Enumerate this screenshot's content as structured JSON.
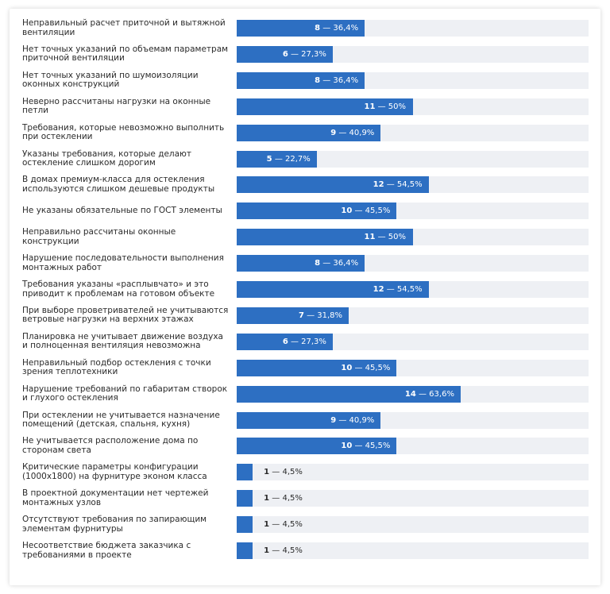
{
  "chart_data": {
    "type": "bar",
    "orientation": "horizontal",
    "categories": [
      "Неправильный расчет приточной и вытяжной вентиляции",
      "Нет точных указаний по объемам параметрам приточной вентиляции",
      "Нет точных указаний по шумоизоляции оконных конструкций",
      "Неверно рассчитаны нагрузки на оконные петли",
      "Требования, которые невозможно выполнить при остеклении",
      "Указаны требования, которые делают остекление слишком дорогим",
      "В домах премиум-класса для остекления используются слишком дешевые продукты",
      "Не указаны обязательные по ГОСТ элементы",
      "Неправильно рассчитаны оконные конструкции",
      "Нарушение последовательности выполнения монтажных работ",
      "Требования указаны «расплывчато» и это приводит к проблемам на готовом объекте",
      "При выборе проветривателей не учитываются ветровые нагрузки на верхних этажах",
      "Планировка не учитывает движение воздуха и полноценная вентиляция невозможна",
      "Неправильный подбор остекления с точки зрения теплотехники",
      "Нарушение требований по габаритам створок и глухого остекления",
      "При остеклении не учитывается назначение помещений (детская, спальня, кухня)",
      "Не учитывается расположение дома по сторонам света",
      "Критические параметры конфигурации (1000х1800) на фурнитуре эконом класса",
      "В проектной документации нет чертежей монтажных узлов",
      "Отсутствуют требования по запирающим элементам фурнитуры",
      "Несоответствие бюджета заказчика с требованиями в проекте"
    ],
    "values": [
      8,
      6,
      8,
      11,
      9,
      5,
      12,
      10,
      11,
      8,
      12,
      7,
      6,
      10,
      14,
      9,
      10,
      1,
      1,
      1,
      1
    ],
    "percent_labels": [
      "36,4%",
      "27,3%",
      "36,4%",
      "50%",
      "40,9%",
      "22,7%",
      "54,5%",
      "45,5%",
      "50%",
      "36,4%",
      "54,5%",
      "31,8%",
      "27,3%",
      "45,5%",
      "63,6%",
      "40,9%",
      "45,5%",
      "4,5%",
      "4,5%",
      "4,5%",
      "4,5%"
    ],
    "separator": "—",
    "xlim": [
      0,
      22
    ],
    "grid": false,
    "legend": "none",
    "colors": {
      "bar": "#2d6fc2",
      "track": "#eef0f4",
      "text": "#2b2b2b",
      "value_on_bar": "#ffffff"
    }
  }
}
